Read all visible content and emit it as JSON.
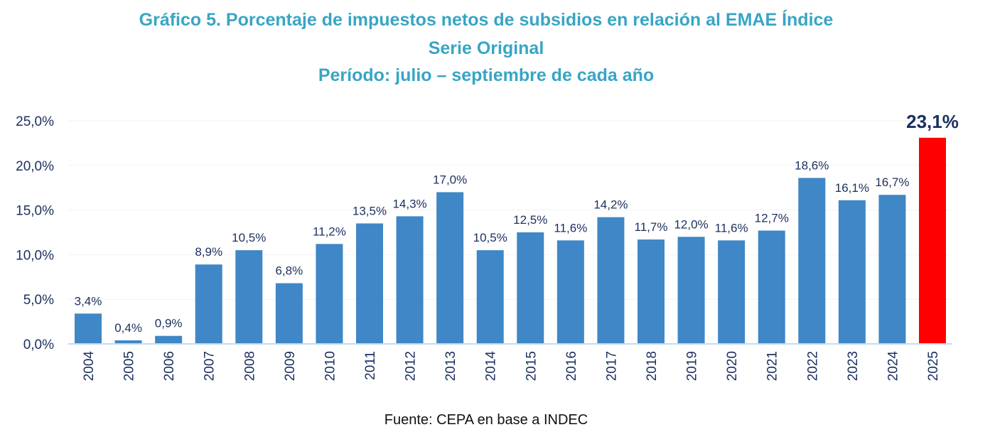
{
  "chart_data": {
    "type": "bar",
    "title": [
      "Gráfico 5. Porcentaje de impuestos netos de subsidios en relación al EMAE Índice",
      "Serie Original",
      "Período: julio – septiembre de cada año"
    ],
    "categories": [
      "2004",
      "2005",
      "2006",
      "2007",
      "2008",
      "2009",
      "2010",
      "2011",
      "2012",
      "2013",
      "2014",
      "2015",
      "2016",
      "2017",
      "2018",
      "2019",
      "2020",
      "2021",
      "2022",
      "2023",
      "2024",
      "2025"
    ],
    "values": [
      3.4,
      0.4,
      0.9,
      8.9,
      10.5,
      6.8,
      11.2,
      13.5,
      14.3,
      17.0,
      10.5,
      12.5,
      11.6,
      14.2,
      11.7,
      12.0,
      11.6,
      12.7,
      18.6,
      16.1,
      16.7,
      23.1
    ],
    "data_labels": [
      "3,4%",
      "0,4%",
      "0,9%",
      "8,9%",
      "10,5%",
      "6,8%",
      "11,2%",
      "13,5%",
      "14,3%",
      "17,0%",
      "10,5%",
      "12,5%",
      "11,6%",
      "14,2%",
      "11,7%",
      "12,0%",
      "11,6%",
      "12,7%",
      "18,6%",
      "16,1%",
      "16,7%",
      "23,1%"
    ],
    "yticks": [
      "0,0%",
      "5,0%",
      "10,0%",
      "15,0%",
      "20,0%",
      "25,0%"
    ],
    "ylim": [
      0,
      25
    ],
    "xlabel": "",
    "ylabel": "",
    "grid": true,
    "colors": {
      "bar": "#3F87C6",
      "highlight": "#FF0000",
      "label": "#1B2F5E",
      "title": "#38A5C5"
    },
    "highlight_category": "2025"
  },
  "source": "Fuente: CEPA en base a INDEC"
}
